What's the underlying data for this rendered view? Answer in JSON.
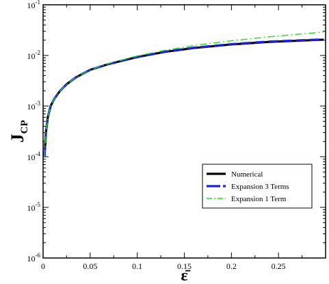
{
  "chart_data": {
    "type": "line",
    "title": "",
    "xlabel": "ε̄",
    "ylabel": "J",
    "ylabel_subscript": "CP",
    "xlim": [
      0,
      0.3
    ],
    "ylim": [
      1e-06,
      0.1
    ],
    "yscale": "log",
    "grid": false,
    "legend_position": "lower-right",
    "x_ticks": [
      {
        "value": 0,
        "label": "0"
      },
      {
        "value": 0.05,
        "label": "0.05"
      },
      {
        "value": 0.1,
        "label": "0.1"
      },
      {
        "value": 0.15,
        "label": "0.15"
      },
      {
        "value": 0.2,
        "label": "0.2"
      },
      {
        "value": 0.25,
        "label": "0.25"
      }
    ],
    "y_ticks": [
      {
        "value": 1e-06,
        "base": "10",
        "exp": "-6"
      },
      {
        "value": 1e-05,
        "base": "10",
        "exp": "-5"
      },
      {
        "value": 0.0001,
        "base": "10",
        "exp": "-4"
      },
      {
        "value": 0.001,
        "base": "10",
        "exp": "-3"
      },
      {
        "value": 0.01,
        "base": "10",
        "exp": "-2"
      },
      {
        "value": 0.1,
        "base": "10",
        "exp": "-1"
      }
    ],
    "series": [
      {
        "name": "Numerical",
        "color": "#000000",
        "style": "solid",
        "x": [
          0.0015,
          0.003,
          0.005,
          0.008,
          0.012,
          0.018,
          0.025,
          0.035,
          0.05,
          0.07,
          0.1,
          0.13,
          0.16,
          0.2,
          0.24,
          0.27,
          0.298
        ],
        "y": [
          0.0001,
          0.0003,
          0.0006,
          0.001,
          0.0014,
          0.002,
          0.0027,
          0.0037,
          0.0052,
          0.0068,
          0.0093,
          0.0118,
          0.014,
          0.0165,
          0.0185,
          0.0195,
          0.0205
        ]
      },
      {
        "name": "Expansion 3 Terms",
        "color": "#1f1fe0",
        "style": "dashed",
        "x": [
          0.0015,
          0.003,
          0.005,
          0.008,
          0.012,
          0.018,
          0.025,
          0.035,
          0.05,
          0.07,
          0.1,
          0.13,
          0.16,
          0.2,
          0.24,
          0.27,
          0.298
        ],
        "y": [
          0.0001,
          0.0003,
          0.0006,
          0.001,
          0.0014,
          0.002,
          0.0027,
          0.0037,
          0.0052,
          0.0068,
          0.0093,
          0.0119,
          0.0142,
          0.0167,
          0.0188,
          0.0198,
          0.0207
        ]
      },
      {
        "name": "Expansion 1 Term",
        "color": "#22dd22",
        "style": "dash-dot",
        "x": [
          0.0015,
          0.003,
          0.005,
          0.008,
          0.012,
          0.018,
          0.025,
          0.035,
          0.05,
          0.07,
          0.1,
          0.13,
          0.16,
          0.2,
          0.24,
          0.27,
          0.298
        ],
        "y": [
          0.0001,
          0.0003,
          0.0006,
          0.001,
          0.0014,
          0.002,
          0.0027,
          0.0037,
          0.0052,
          0.007,
          0.0098,
          0.0127,
          0.0157,
          0.0195,
          0.0233,
          0.0262,
          0.029
        ]
      }
    ]
  }
}
